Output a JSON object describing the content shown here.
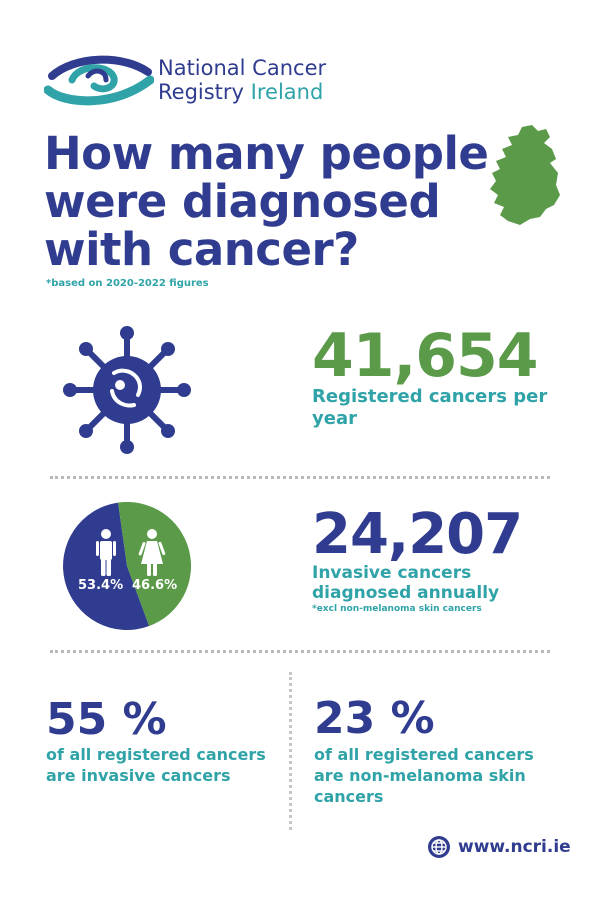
{
  "header": {
    "logo_line1": "National Cancer",
    "logo_line2_a": "Registry",
    "logo_line2_b": "Ireland",
    "title_lines": [
      "How many people",
      "were diagnosed",
      "with cancer?"
    ],
    "footnote": "*based on 2020-2022 figures"
  },
  "stats": {
    "registered": {
      "value": "41,654",
      "label": "Registered cancers per year"
    },
    "invasive": {
      "value": "24,207",
      "label": "Invasive cancers diagnosed annually",
      "note": "*excl non-melanoma skin cancers",
      "split": {
        "male_pct_label": "53.4%",
        "female_pct_label": "46.6%",
        "male_fraction": 0.534,
        "female_fraction": 0.466
      }
    },
    "share_invasive": {
      "value": "55 %",
      "label": "of all registered cancers are invasive cancers"
    },
    "share_nmsc": {
      "value": "23 %",
      "label": "of all registered cancers are non-melanoma skin cancers"
    }
  },
  "footer": {
    "website": "www.ncri.ie"
  },
  "icons": {
    "logo": "ncri-swirl-logo",
    "map": "ireland-map-icon",
    "virus": "cancer-cell-icon",
    "male": "male-figure-icon",
    "female": "female-figure-icon",
    "globe": "globe-icon"
  },
  "colors": {
    "navy": "#2f3c8f",
    "green": "#5a9a49",
    "teal": "#2fa3a8",
    "divider": "#b9b9b9"
  }
}
